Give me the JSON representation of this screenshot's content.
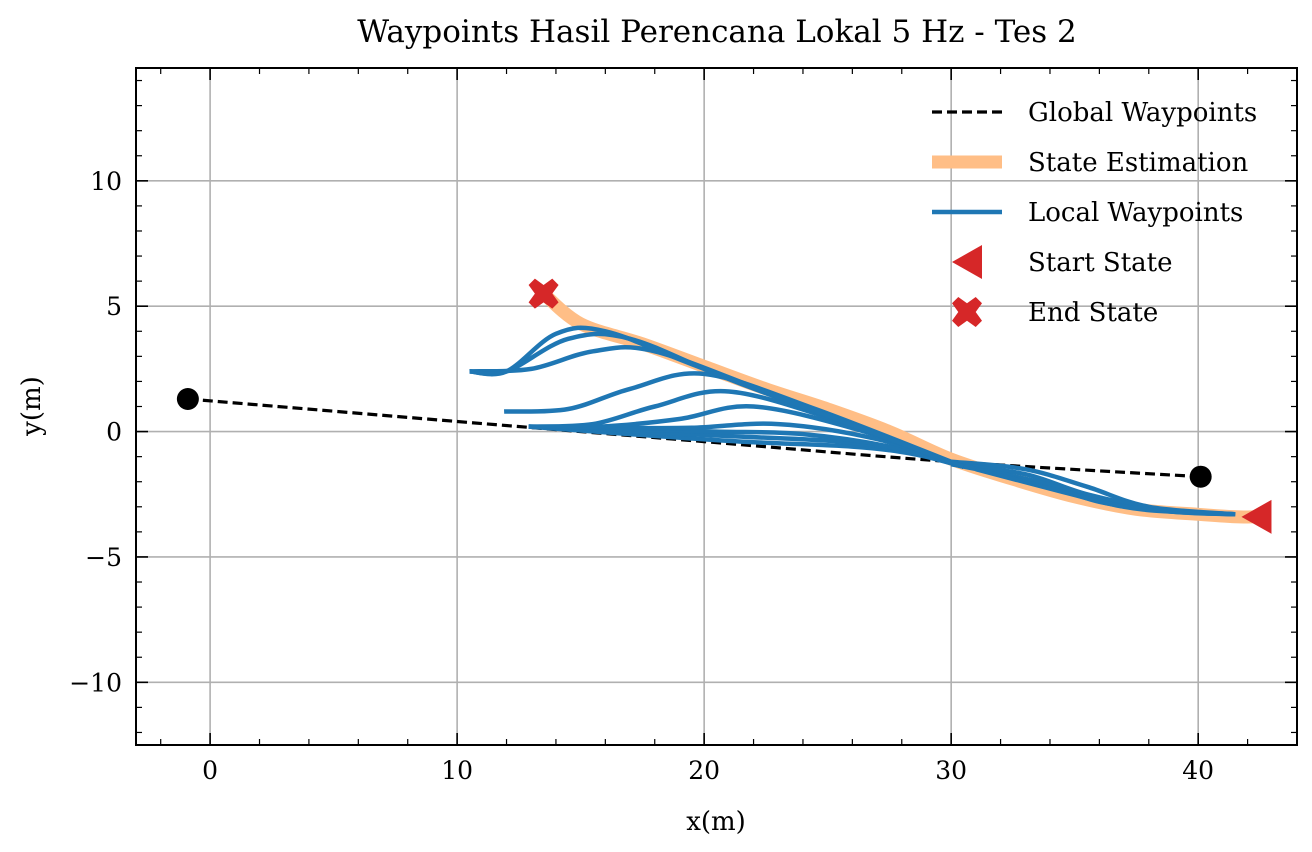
{
  "chart_data": {
    "type": "line",
    "title": "Waypoints Hasil Perencana Lokal 5 Hz - Tes 2",
    "xlabel": "x(m)",
    "ylabel": "y(m)",
    "xlim": [
      -3.0,
      44.0
    ],
    "ylim": [
      -12.5,
      14.5
    ],
    "xticks": [
      0,
      10,
      20,
      30,
      40
    ],
    "yticks": [
      -10,
      -5,
      0,
      5,
      10
    ],
    "xtick_labels": [
      "0",
      "10",
      "20",
      "30",
      "40"
    ],
    "ytick_labels": [
      "−10",
      "−5",
      "0",
      "5",
      "10"
    ],
    "grid": true,
    "legend_position": "top-right",
    "colors": {
      "global": "#000000",
      "state": "#FFBE86",
      "local": "#1F77B4",
      "marker": "#D62728"
    },
    "series": [
      {
        "name": "Global Waypoints",
        "style": "dashed",
        "x": [
          -0.9,
          10.0,
          20.0,
          30.0,
          40.1
        ],
        "y": [
          1.3,
          0.4,
          -0.4,
          -1.2,
          -1.8
        ]
      },
      {
        "name": "State Estimation",
        "style": "thick",
        "x": [
          13.4,
          15.0,
          17.5,
          20.0,
          22.5,
          25.0,
          27.5,
          30.0,
          32.5,
          35.0,
          37.5,
          40.0,
          41.5,
          42.3
        ],
        "y": [
          5.6,
          4.3,
          3.5,
          2.6,
          1.7,
          0.9,
          0.0,
          -1.1,
          -1.9,
          -2.6,
          -3.1,
          -3.3,
          -3.4,
          -3.4
        ]
      },
      {
        "name": "Local Waypoints",
        "style": "solid",
        "paths": [
          {
            "x": [
              41.5,
              38.0,
              35.5,
              33.0,
              30.0
            ],
            "y": [
              -3.3,
              -3.0,
              -2.2,
              -1.5,
              -1.2
            ]
          },
          {
            "x": [
              41.5,
              38.5,
              35.5,
              33.0,
              30.0
            ],
            "y": [
              -3.3,
              -3.1,
              -2.5,
              -1.7,
              -1.3
            ]
          },
          {
            "x": [
              41.5,
              39.0,
              36.0,
              33.5,
              30.0
            ],
            "y": [
              -3.3,
              -3.2,
              -2.8,
              -2.0,
              -1.3
            ]
          },
          {
            "x": [
              41.5,
              39.0,
              37.0,
              34.5,
              31.0
            ],
            "y": [
              -3.3,
              -3.2,
              -3.0,
              -2.4,
              -1.5
            ]
          },
          {
            "x": [
              12.9,
              17.0,
              21.5,
              26.0,
              28.5,
              30.5
            ],
            "y": [
              0.2,
              -0.1,
              -0.4,
              -0.6,
              -0.9,
              -1.4
            ]
          },
          {
            "x": [
              12.9,
              17.0,
              21.5,
              25.5,
              28.5,
              30.5
            ],
            "y": [
              0.2,
              0.0,
              -0.2,
              -0.4,
              -0.8,
              -1.4
            ]
          },
          {
            "x": [
              12.9,
              16.5,
              20.5,
              24.0,
              27.5,
              30.5
            ],
            "y": [
              0.2,
              0.1,
              0.0,
              -0.1,
              -0.6,
              -1.4
            ]
          },
          {
            "x": [
              12.9,
              16.5,
              19.5,
              23.0,
              27.0,
              30.5
            ],
            "y": [
              0.2,
              0.15,
              0.15,
              0.3,
              -0.3,
              -1.4
            ]
          },
          {
            "x": [
              12.9,
              15.8,
              19.0,
              22.0,
              26.5,
              30.5
            ],
            "y": [
              0.2,
              0.2,
              0.5,
              1.0,
              0.0,
              -1.4
            ]
          },
          {
            "x": [
              12.9,
              15.5,
              18.0,
              21.0,
              25.5,
              30.5
            ],
            "y": [
              0.2,
              0.3,
              1.0,
              1.6,
              0.4,
              -1.4
            ]
          },
          {
            "x": [
              11.9,
              14.5,
              17.0,
              20.0,
              24.5,
              30.5
            ],
            "y": [
              0.8,
              0.9,
              1.7,
              2.3,
              0.9,
              -1.4
            ]
          },
          {
            "x": [
              10.5,
              13.0,
              15.5,
              18.0,
              23.0,
              30.5
            ],
            "y": [
              2.4,
              2.5,
              3.2,
              3.2,
              1.4,
              -1.4
            ]
          },
          {
            "x": [
              10.5,
              12.0,
              14.5,
              17.0,
              21.5,
              30.5
            ],
            "y": [
              2.4,
              2.4,
              3.7,
              3.7,
              1.9,
              -1.4
            ]
          },
          {
            "x": [
              10.5,
              12.0,
              14.0,
              16.0,
              20.0,
              30.5
            ],
            "y": [
              2.4,
              2.4,
              3.9,
              4.0,
              2.5,
              -1.4
            ]
          }
        ]
      },
      {
        "name": "Start State",
        "marker": "triangle-left",
        "x": [
          42.4
        ],
        "y": [
          -3.4
        ]
      },
      {
        "name": "End State",
        "marker": "x-filled",
        "x": [
          13.5
        ],
        "y": [
          5.5
        ]
      }
    ],
    "endpoints": {
      "x": [
        -0.9,
        40.1
      ],
      "y": [
        1.3,
        -1.8
      ]
    }
  }
}
